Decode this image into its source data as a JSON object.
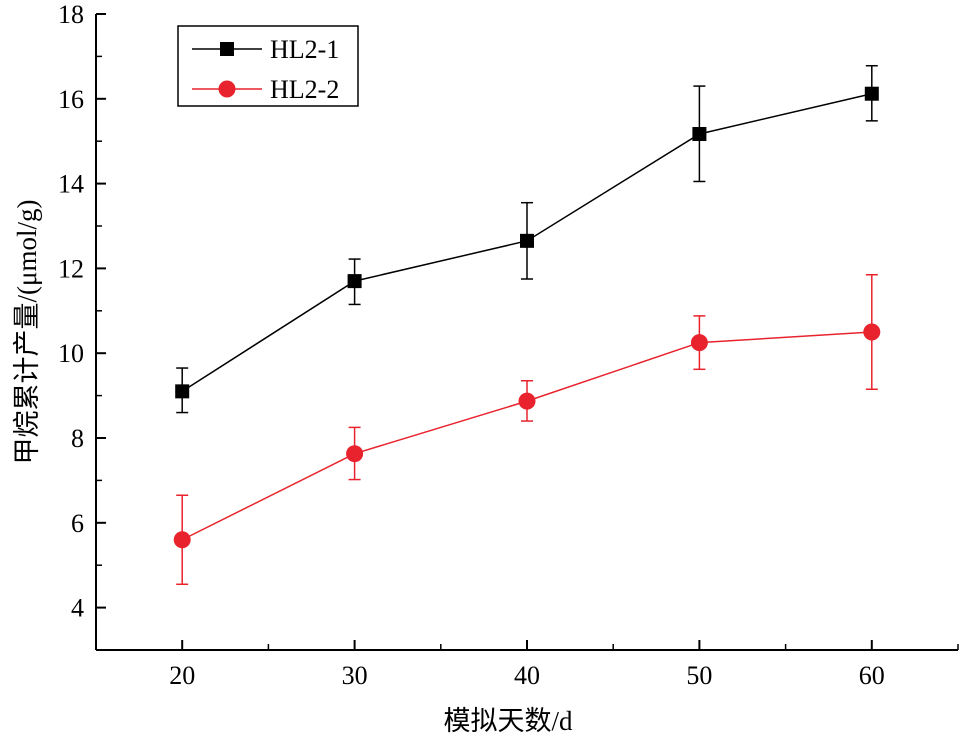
{
  "chart_data": {
    "type": "line",
    "xlabel": "模拟天数/d",
    "ylabel": "甲烷累计产量/(μmol/g)",
    "xlim": [
      15,
      65
    ],
    "ylim": [
      3,
      18
    ],
    "x_ticks": [
      20,
      30,
      40,
      50,
      60
    ],
    "y_ticks": [
      4,
      6,
      8,
      10,
      12,
      14,
      16,
      18
    ],
    "x": [
      20,
      30,
      40,
      50,
      60
    ],
    "grid": false,
    "legend_position": "top-left",
    "series": [
      {
        "name": "HL2-1",
        "color": "#000000",
        "marker": "square",
        "values": [
          9.1,
          11.7,
          12.65,
          15.17,
          16.12
        ],
        "error_low": [
          8.6,
          11.15,
          11.75,
          14.05,
          15.48
        ],
        "error_high": [
          9.65,
          12.22,
          13.55,
          16.3,
          16.78
        ]
      },
      {
        "name": "HL2-2",
        "color": "#e8232d",
        "marker": "circle",
        "values": [
          5.6,
          7.63,
          8.87,
          10.25,
          10.5
        ],
        "error_low": [
          4.55,
          7.02,
          8.4,
          9.62,
          9.15
        ],
        "error_high": [
          6.65,
          8.25,
          9.35,
          10.88,
          11.85
        ]
      }
    ]
  }
}
